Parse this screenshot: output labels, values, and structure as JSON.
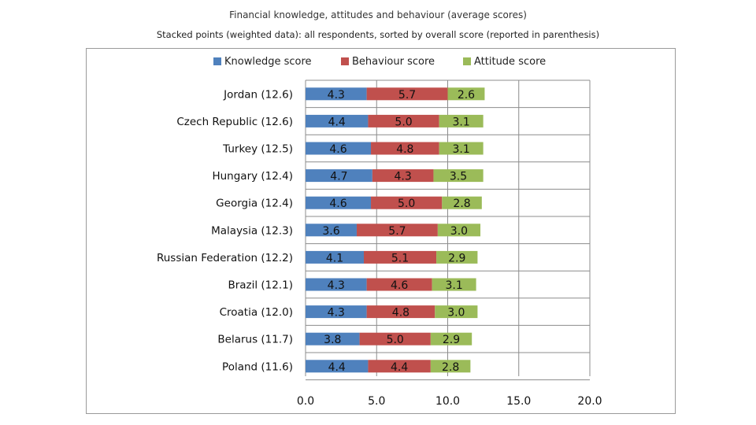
{
  "chart_data": {
    "type": "bar",
    "orientation": "horizontal",
    "stacked": true,
    "title": "Financial knowledge, attitudes and behaviour (average scores)",
    "subtitle": "Stacked points (weighted data): all respondents, sorted by overall score (reported in parenthesis)",
    "categories": [
      "Jordan (12.6)",
      "Czech Republic (12.6)",
      "Turkey (12.5)",
      "Hungary (12.4)",
      "Georgia (12.4)",
      "Malaysia (12.3)",
      "Russian Federation (12.2)",
      "Brazil (12.1)",
      "Croatia (12.0)",
      "Belarus (11.7)",
      "Poland (11.6)"
    ],
    "series": [
      {
        "name": "Knowledge score",
        "color": "#4f81bd",
        "values": [
          4.3,
          4.4,
          4.6,
          4.7,
          4.6,
          3.6,
          4.1,
          4.3,
          4.3,
          3.8,
          4.4
        ]
      },
      {
        "name": "Behaviour score",
        "color": "#c0504d",
        "values": [
          5.7,
          5.0,
          4.8,
          4.3,
          5.0,
          5.7,
          5.1,
          4.6,
          4.8,
          5.0,
          4.4
        ]
      },
      {
        "name": "Attitude score",
        "color": "#9bbb59",
        "values": [
          2.6,
          3.1,
          3.1,
          3.5,
          2.8,
          3.0,
          2.9,
          3.1,
          3.0,
          2.9,
          2.8
        ]
      }
    ],
    "xlim": [
      0,
      20
    ],
    "xticks": [
      "0.0",
      "5.0",
      "10.0",
      "15.0",
      "20.0"
    ],
    "tick_values": [
      0,
      5,
      10,
      15,
      20
    ],
    "grid": true,
    "legend_position": "top"
  }
}
